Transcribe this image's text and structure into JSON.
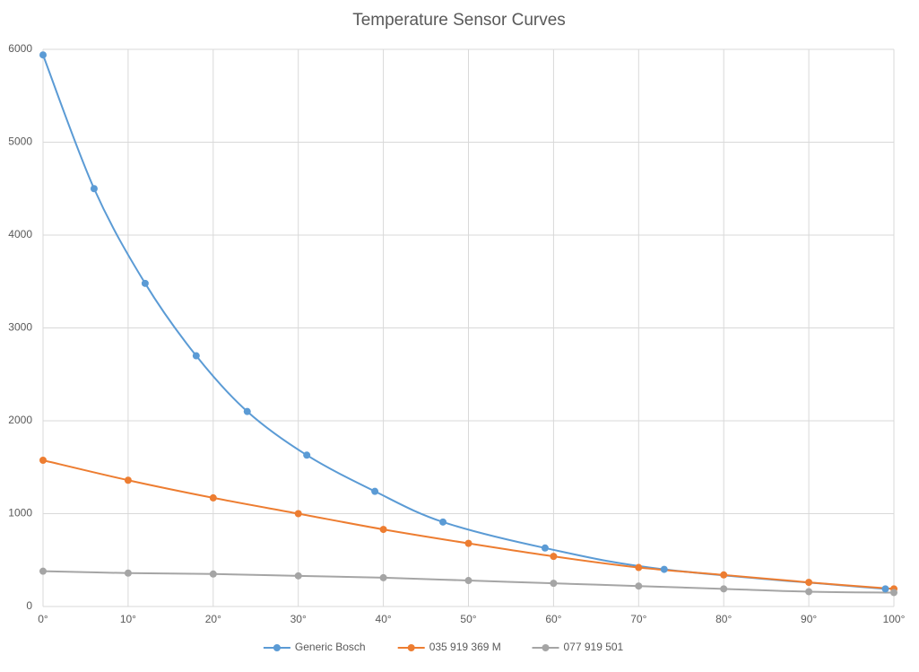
{
  "chart_data": {
    "type": "line",
    "title": "Temperature Sensor Curves",
    "xlim": [
      0,
      100
    ],
    "xticks": [
      {
        "value": 0,
        "label": "0°"
      },
      {
        "value": 10,
        "label": "10°"
      },
      {
        "value": 20,
        "label": "20°"
      },
      {
        "value": 30,
        "label": "30°"
      },
      {
        "value": 40,
        "label": "40°"
      },
      {
        "value": 50,
        "label": "50°"
      },
      {
        "value": 60,
        "label": "60°"
      },
      {
        "value": 70,
        "label": "70°"
      },
      {
        "value": 80,
        "label": "80°"
      },
      {
        "value": 90,
        "label": "90°"
      },
      {
        "value": 100,
        "label": "100°"
      }
    ],
    "ylim": [
      0,
      6000
    ],
    "yticks": [
      0,
      1000,
      2000,
      3000,
      4000,
      5000,
      6000
    ],
    "grid": true,
    "smooth": true,
    "legend": "bottom",
    "series": [
      {
        "name": "Generic Bosch",
        "color": "#5b9bd5",
        "x": [
          0,
          6,
          12,
          18,
          24,
          31,
          39,
          47,
          59,
          73,
          99
        ],
        "values": [
          5940,
          4500,
          3480,
          2700,
          2100,
          1630,
          1240,
          910,
          630,
          400,
          190
        ]
      },
      {
        "name": "035 919 369 M",
        "color": "#ed7d31",
        "x": [
          0,
          10,
          20,
          30,
          40,
          50,
          60,
          70,
          80,
          90,
          100
        ],
        "values": [
          1575,
          1360,
          1170,
          1000,
          830,
          680,
          540,
          420,
          340,
          260,
          190
        ]
      },
      {
        "name": "077 919 501",
        "color": "#a5a5a5",
        "x": [
          0,
          10,
          20,
          30,
          40,
          50,
          60,
          70,
          80,
          90,
          100
        ],
        "values": [
          380,
          360,
          350,
          330,
          310,
          280,
          250,
          220,
          190,
          160,
          150
        ]
      }
    ]
  }
}
